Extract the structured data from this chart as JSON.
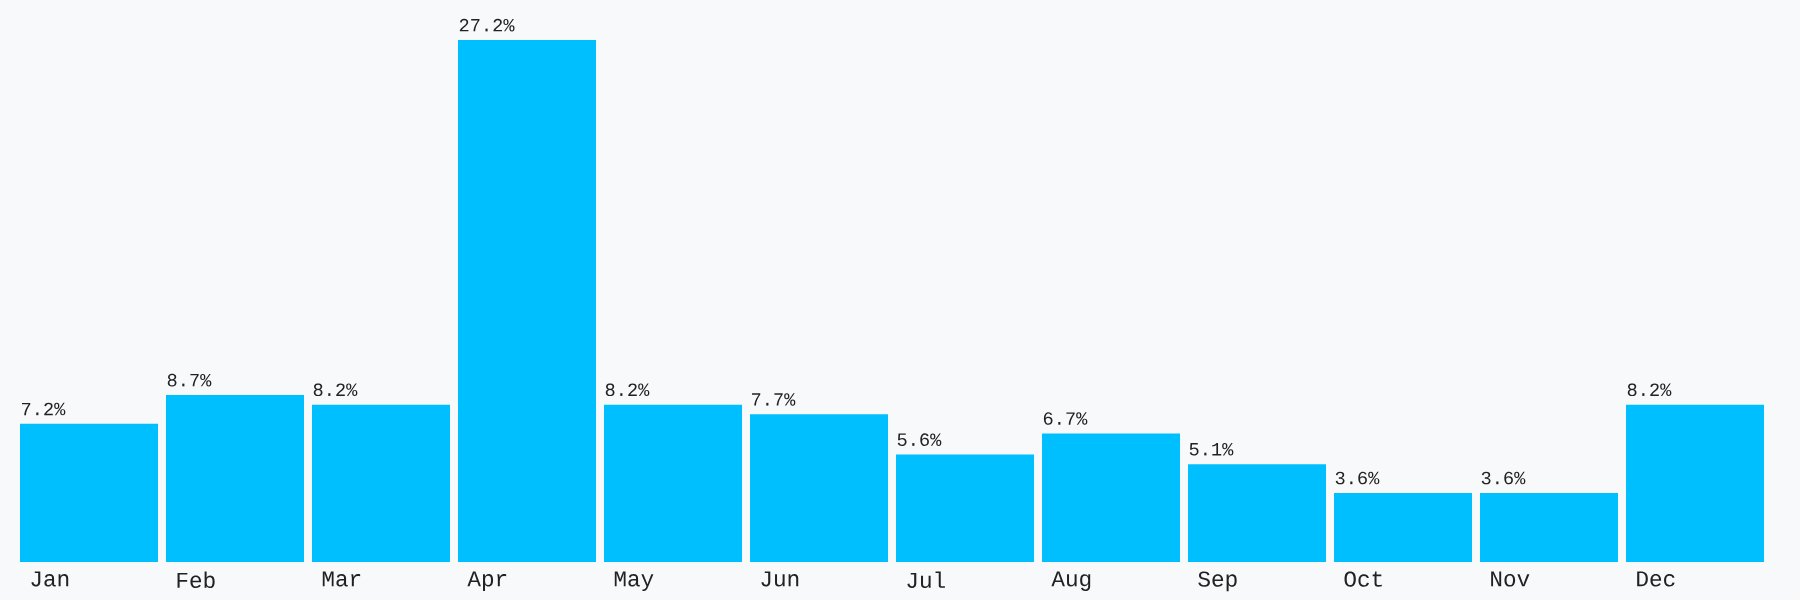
{
  "chart_data": {
    "type": "bar",
    "categories": [
      "Jan",
      "Feb",
      "Mar",
      "Apr",
      "May",
      "Jun",
      "Jul",
      "Aug",
      "Sep",
      "Oct",
      "Nov",
      "Dec"
    ],
    "values": [
      7.2,
      8.7,
      8.2,
      27.2,
      8.2,
      7.7,
      5.6,
      6.7,
      5.1,
      3.6,
      3.6,
      8.2
    ],
    "value_labels": [
      "7.2%",
      "8.7%",
      "8.2%",
      "27.2%",
      "8.2%",
      "7.7%",
      "5.6%",
      "6.7%",
      "5.1%",
      "3.6%",
      "3.6%",
      "8.2%"
    ],
    "color": "#00bfff"
  }
}
